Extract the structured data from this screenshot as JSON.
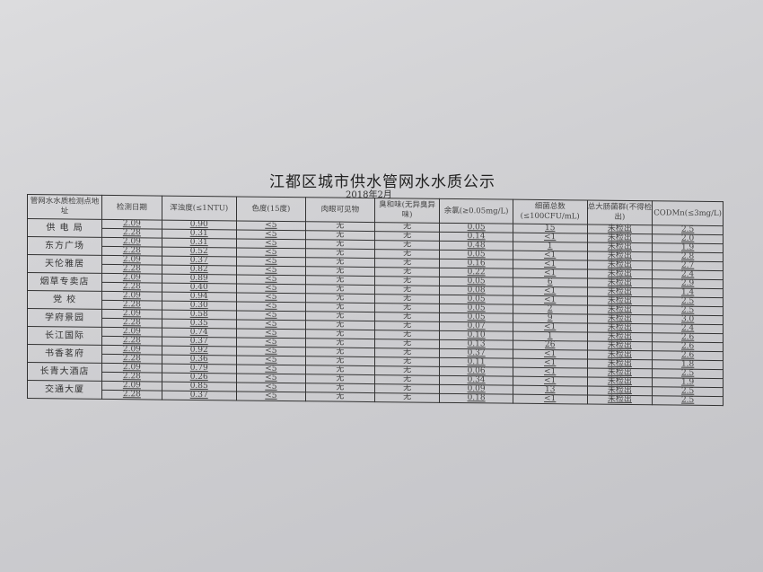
{
  "title": "江都区城市供水管网水水质公示",
  "subtitle": "2018年2月",
  "headers": [
    "管网水水质检测点地址",
    "检测日期",
    "浑浊度(≤1NTU)",
    "色度(15度)",
    "肉眼可见物",
    "臭和味(无异臭异味)",
    "余氯(≥0.05mg/L)",
    "细菌总数(≤100CFU/mL)",
    "总大肠菌群(不得检出)",
    "CODMn(≤3mg/L)"
  ],
  "sites": [
    {
      "name": "供 电 局",
      "rows": [
        [
          "2.09",
          "0.90",
          "<5",
          "无",
          "无",
          "0.05",
          "15",
          "未检出",
          "2.5"
        ],
        [
          "2.28",
          "0.31",
          "<5",
          "无",
          "无",
          "0.14",
          "<1",
          "未检出",
          "2.0"
        ]
      ]
    },
    {
      "name": "东方广场",
      "rows": [
        [
          "2.09",
          "0.31",
          "<5",
          "无",
          "无",
          "0.48",
          "1",
          "未检出",
          "1.9"
        ],
        [
          "2.28",
          "0.52",
          "<5",
          "无",
          "无",
          "0.05",
          "<1",
          "未检出",
          "2.8"
        ]
      ]
    },
    {
      "name": "天伦雅居",
      "rows": [
        [
          "2.09",
          "0.37",
          "<5",
          "无",
          "无",
          "0.16",
          "<1",
          "未检出",
          "2.7"
        ],
        [
          "2.28",
          "0.82",
          "<5",
          "无",
          "无",
          "0.22",
          "<1",
          "未检出",
          "2.4"
        ]
      ]
    },
    {
      "name": "烟草专卖店",
      "rows": [
        [
          "2.09",
          "0.89",
          "<5",
          "无",
          "无",
          "0.05",
          "6",
          "未检出",
          "2.9"
        ],
        [
          "2.28",
          "0.40",
          "<5",
          "无",
          "无",
          "0.08",
          "<1",
          "未检出",
          "1.4"
        ]
      ]
    },
    {
      "name": "党  校",
      "rows": [
        [
          "2.09",
          "0.94",
          "<5",
          "无",
          "无",
          "0.05",
          "<1",
          "未检出",
          "2.5"
        ],
        [
          "2.28",
          "0.30",
          "<5",
          "无",
          "无",
          "0.05",
          "2",
          "未检出",
          "2.5"
        ]
      ]
    },
    {
      "name": "学府景园",
      "rows": [
        [
          "2.09",
          "0.58",
          "<5",
          "无",
          "无",
          "0.05",
          "9",
          "未检出",
          "3.0"
        ],
        [
          "2.28",
          "0.35",
          "<5",
          "无",
          "无",
          "0.07",
          "<1",
          "未检出",
          "2.4"
        ]
      ]
    },
    {
      "name": "长江国际",
      "rows": [
        [
          "2.09",
          "0.74",
          "<5",
          "无",
          "无",
          "0.10",
          "1",
          "未检出",
          "2.6"
        ],
        [
          "2.28",
          "0.37",
          "<5",
          "无",
          "无",
          "0.13",
          "26",
          "未检出",
          "2.6"
        ]
      ]
    },
    {
      "name": "书香茗府",
      "rows": [
        [
          "2.09",
          "0.92",
          "<5",
          "无",
          "无",
          "0.37",
          "<1",
          "未检出",
          "2.6"
        ],
        [
          "2.28",
          "0.36",
          "<5",
          "无",
          "无",
          "0.11",
          "<1",
          "未检出",
          "1.8"
        ]
      ]
    },
    {
      "name": "长青大酒店",
      "rows": [
        [
          "2.09",
          "0.79",
          "<5",
          "无",
          "无",
          "0.06",
          "<1",
          "未检出",
          "2.5"
        ],
        [
          "2.28",
          "0.26",
          "<5",
          "无",
          "无",
          "0.34",
          "<1",
          "未检出",
          "1.9"
        ]
      ]
    },
    {
      "name": "交通大厦",
      "rows": [
        [
          "2.09",
          "0.85",
          "<5",
          "无",
          "无",
          "0.09",
          "13",
          "未检出",
          "2.5"
        ],
        [
          "2.28",
          "0.37",
          "<5",
          "无",
          "无",
          "0.18",
          "<1",
          "未检出",
          "2.5"
        ]
      ]
    }
  ]
}
